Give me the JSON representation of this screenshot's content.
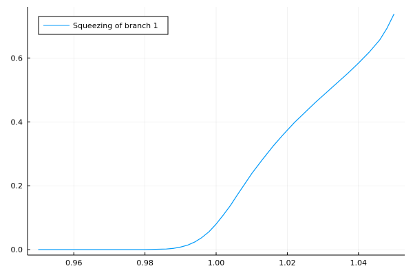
{
  "chart_data": {
    "type": "line",
    "title": "",
    "xlabel": "",
    "ylabel": "",
    "xlim": [
      0.947,
      1.053
    ],
    "ylim": [
      -0.017,
      0.76
    ],
    "x_ticks": [
      0.96,
      0.98,
      1.0,
      1.02,
      1.04
    ],
    "x_tick_labels": [
      "0.96",
      "0.98",
      "1.00",
      "1.02",
      "1.04"
    ],
    "y_ticks": [
      0.0,
      0.2,
      0.4,
      0.6
    ],
    "y_tick_labels": [
      "0.0",
      "0.2",
      "0.4",
      "0.6"
    ],
    "grid": true,
    "legend_position": "top-left",
    "series": [
      {
        "name": "Squeezing of branch 1",
        "color": "#009AFA",
        "x": [
          0.95,
          0.955,
          0.96,
          0.965,
          0.97,
          0.975,
          0.98,
          0.983,
          0.986,
          0.988,
          0.99,
          0.992,
          0.994,
          0.996,
          0.998,
          1.0,
          1.002,
          1.004,
          1.006,
          1.008,
          1.01,
          1.013,
          1.016,
          1.019,
          1.022,
          1.025,
          1.028,
          1.031,
          1.034,
          1.037,
          1.04,
          1.043,
          1.046,
          1.048,
          1.05
        ],
        "y": [
          0.0,
          0.0,
          0.0,
          0.0,
          0.0,
          0.0,
          0.0,
          0.001,
          0.002,
          0.004,
          0.008,
          0.014,
          0.024,
          0.038,
          0.056,
          0.08,
          0.108,
          0.138,
          0.172,
          0.205,
          0.238,
          0.282,
          0.324,
          0.362,
          0.398,
          0.43,
          0.462,
          0.492,
          0.522,
          0.552,
          0.584,
          0.618,
          0.657,
          0.693,
          0.738
        ]
      }
    ]
  }
}
